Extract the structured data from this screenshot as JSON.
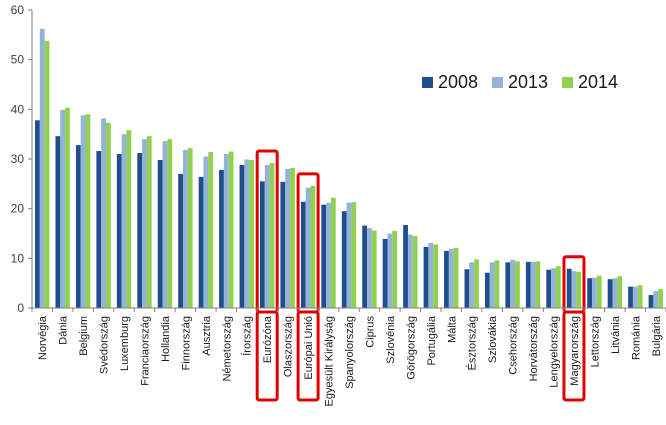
{
  "chart_data": {
    "type": "bar",
    "title": "",
    "xlabel": "",
    "ylabel": "",
    "ylim": [
      0,
      60
    ],
    "yticks": [
      0,
      10,
      20,
      30,
      40,
      50,
      60
    ],
    "grid": false,
    "legend_position": "right",
    "categories": [
      "Norvégia",
      "Dánia",
      "Belgium",
      "Svédország",
      "Luxemburg",
      "Franciaország",
      "Hollandia",
      "Finnország",
      "Ausztria",
      "Németország",
      "Írország",
      "Eurózóna",
      "Olaszország",
      "Európai Unió",
      "Egyesült Királyság",
      "Spanyolország",
      "Ciprus",
      "Szlovénia",
      "Görögország",
      "Portugália",
      "Málta",
      "Észtország",
      "Szlovákia",
      "Csehország",
      "Horvátország",
      "Lengyelország",
      "Magyarország",
      "Lettország",
      "Litvánia",
      "Románia",
      "Bulgária"
    ],
    "highlighted": [
      "Eurózóna",
      "Európai Unió",
      "Magyarország"
    ],
    "highlight_color": "#e00000",
    "series": [
      {
        "name": "2008",
        "color": "#1f4e8c",
        "values": [
          37.8,
          34.6,
          32.8,
          31.6,
          31.0,
          31.2,
          29.8,
          27.0,
          26.4,
          27.8,
          28.8,
          25.5,
          25.4,
          21.4,
          20.8,
          19.5,
          16.6,
          13.9,
          16.7,
          12.3,
          11.5,
          7.8,
          7.1,
          9.2,
          9.3,
          7.7,
          7.9,
          6.0,
          5.8,
          4.3,
          2.6
        ]
      },
      {
        "name": "2013",
        "color": "#95b3d7",
        "values": [
          56.2,
          39.9,
          38.8,
          38.2,
          35.0,
          34.0,
          33.6,
          31.8,
          30.5,
          31.0,
          29.9,
          28.8,
          28.0,
          24.2,
          21.2,
          21.2,
          16.1,
          15.0,
          14.8,
          13.1,
          11.9,
          9.2,
          9.2,
          9.7,
          9.3,
          8.0,
          7.4,
          6.1,
          6.0,
          4.3,
          3.4
        ]
      },
      {
        "name": "2014",
        "color": "#92d050",
        "values": [
          53.8,
          40.3,
          39.0,
          37.3,
          35.8,
          34.6,
          34.0,
          32.2,
          31.4,
          31.5,
          29.8,
          29.2,
          28.2,
          24.6,
          22.2,
          21.3,
          15.6,
          15.5,
          14.5,
          12.8,
          12.1,
          9.8,
          9.6,
          9.4,
          9.4,
          8.4,
          7.3,
          6.5,
          6.4,
          4.6,
          3.8
        ]
      }
    ]
  }
}
